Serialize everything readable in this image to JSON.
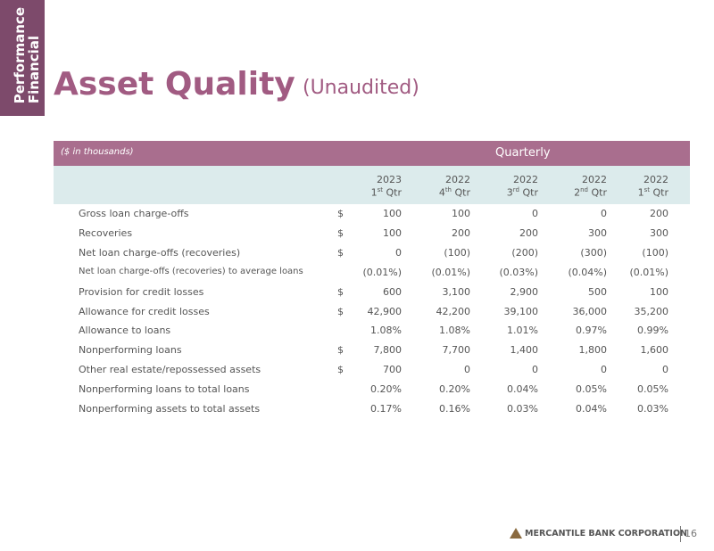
{
  "side_tab": [
    "Financial",
    "Performance"
  ],
  "header": {
    "title": "Asset Quality",
    "subtitle": "(Unaudited)"
  },
  "table": {
    "units": "($ in thousands)",
    "group": "Quarterly",
    "columns": [
      {
        "year": "2023",
        "num": "1",
        "suffix": "st",
        "label": "Qtr"
      },
      {
        "year": "2022",
        "num": "4",
        "suffix": "th",
        "label": "Qtr"
      },
      {
        "year": "2022",
        "num": "3",
        "suffix": "rd",
        "label": "Qtr"
      },
      {
        "year": "2022",
        "num": "2",
        "suffix": "nd",
        "label": "Qtr"
      },
      {
        "year": "2022",
        "num": "1",
        "suffix": "st",
        "label": "Qtr"
      }
    ],
    "rows": [
      {
        "label": "Gross loan charge-offs",
        "currency": "$",
        "values": [
          "100",
          "100",
          "0",
          "0",
          "200"
        ]
      },
      {
        "label": "Recoveries",
        "currency": "$",
        "values": [
          "100",
          "200",
          "200",
          "300",
          "300"
        ]
      },
      {
        "label": "Net loan charge-offs (recoveries)",
        "currency": "$",
        "values": [
          "0",
          "(100)",
          "(200)",
          "(300)",
          "(100)"
        ]
      },
      {
        "label": "Net loan charge-offs (recoveries) to average loans",
        "values": [
          "(0.01%)",
          "(0.01%)",
          "(0.03%)",
          "(0.04%)",
          "(0.01%)"
        ]
      },
      {
        "label": "Provision for credit losses",
        "currency": "$",
        "values": [
          "600",
          "3,100",
          "2,900",
          "500",
          "100"
        ]
      },
      {
        "label": "Allowance for credit losses",
        "currency": "$",
        "values": [
          "42,900",
          "42,200",
          "39,100",
          "36,000",
          "35,200"
        ]
      },
      {
        "label": "Allowance to loans",
        "values": [
          "1.08%",
          "1.08%",
          "1.01%",
          "0.97%",
          "0.99%"
        ]
      },
      {
        "label": "Nonperforming loans",
        "currency": "$",
        "values": [
          "7,800",
          "7,700",
          "1,400",
          "1,800",
          "1,600"
        ]
      },
      {
        "label": "Other real estate/repossessed assets",
        "currency": "$",
        "values": [
          "700",
          "0",
          "0",
          "0",
          "0"
        ]
      },
      {
        "label": "Nonperforming loans to total loans",
        "values": [
          "0.20%",
          "0.20%",
          "0.04%",
          "0.05%",
          "0.05%"
        ]
      },
      {
        "label": "Nonperforming assets to total assets",
        "values": [
          "0.17%",
          "0.16%",
          "0.03%",
          "0.04%",
          "0.03%"
        ]
      }
    ]
  },
  "footer": {
    "company": "MERCANTILE BANK CORPORATION",
    "page": "16"
  }
}
